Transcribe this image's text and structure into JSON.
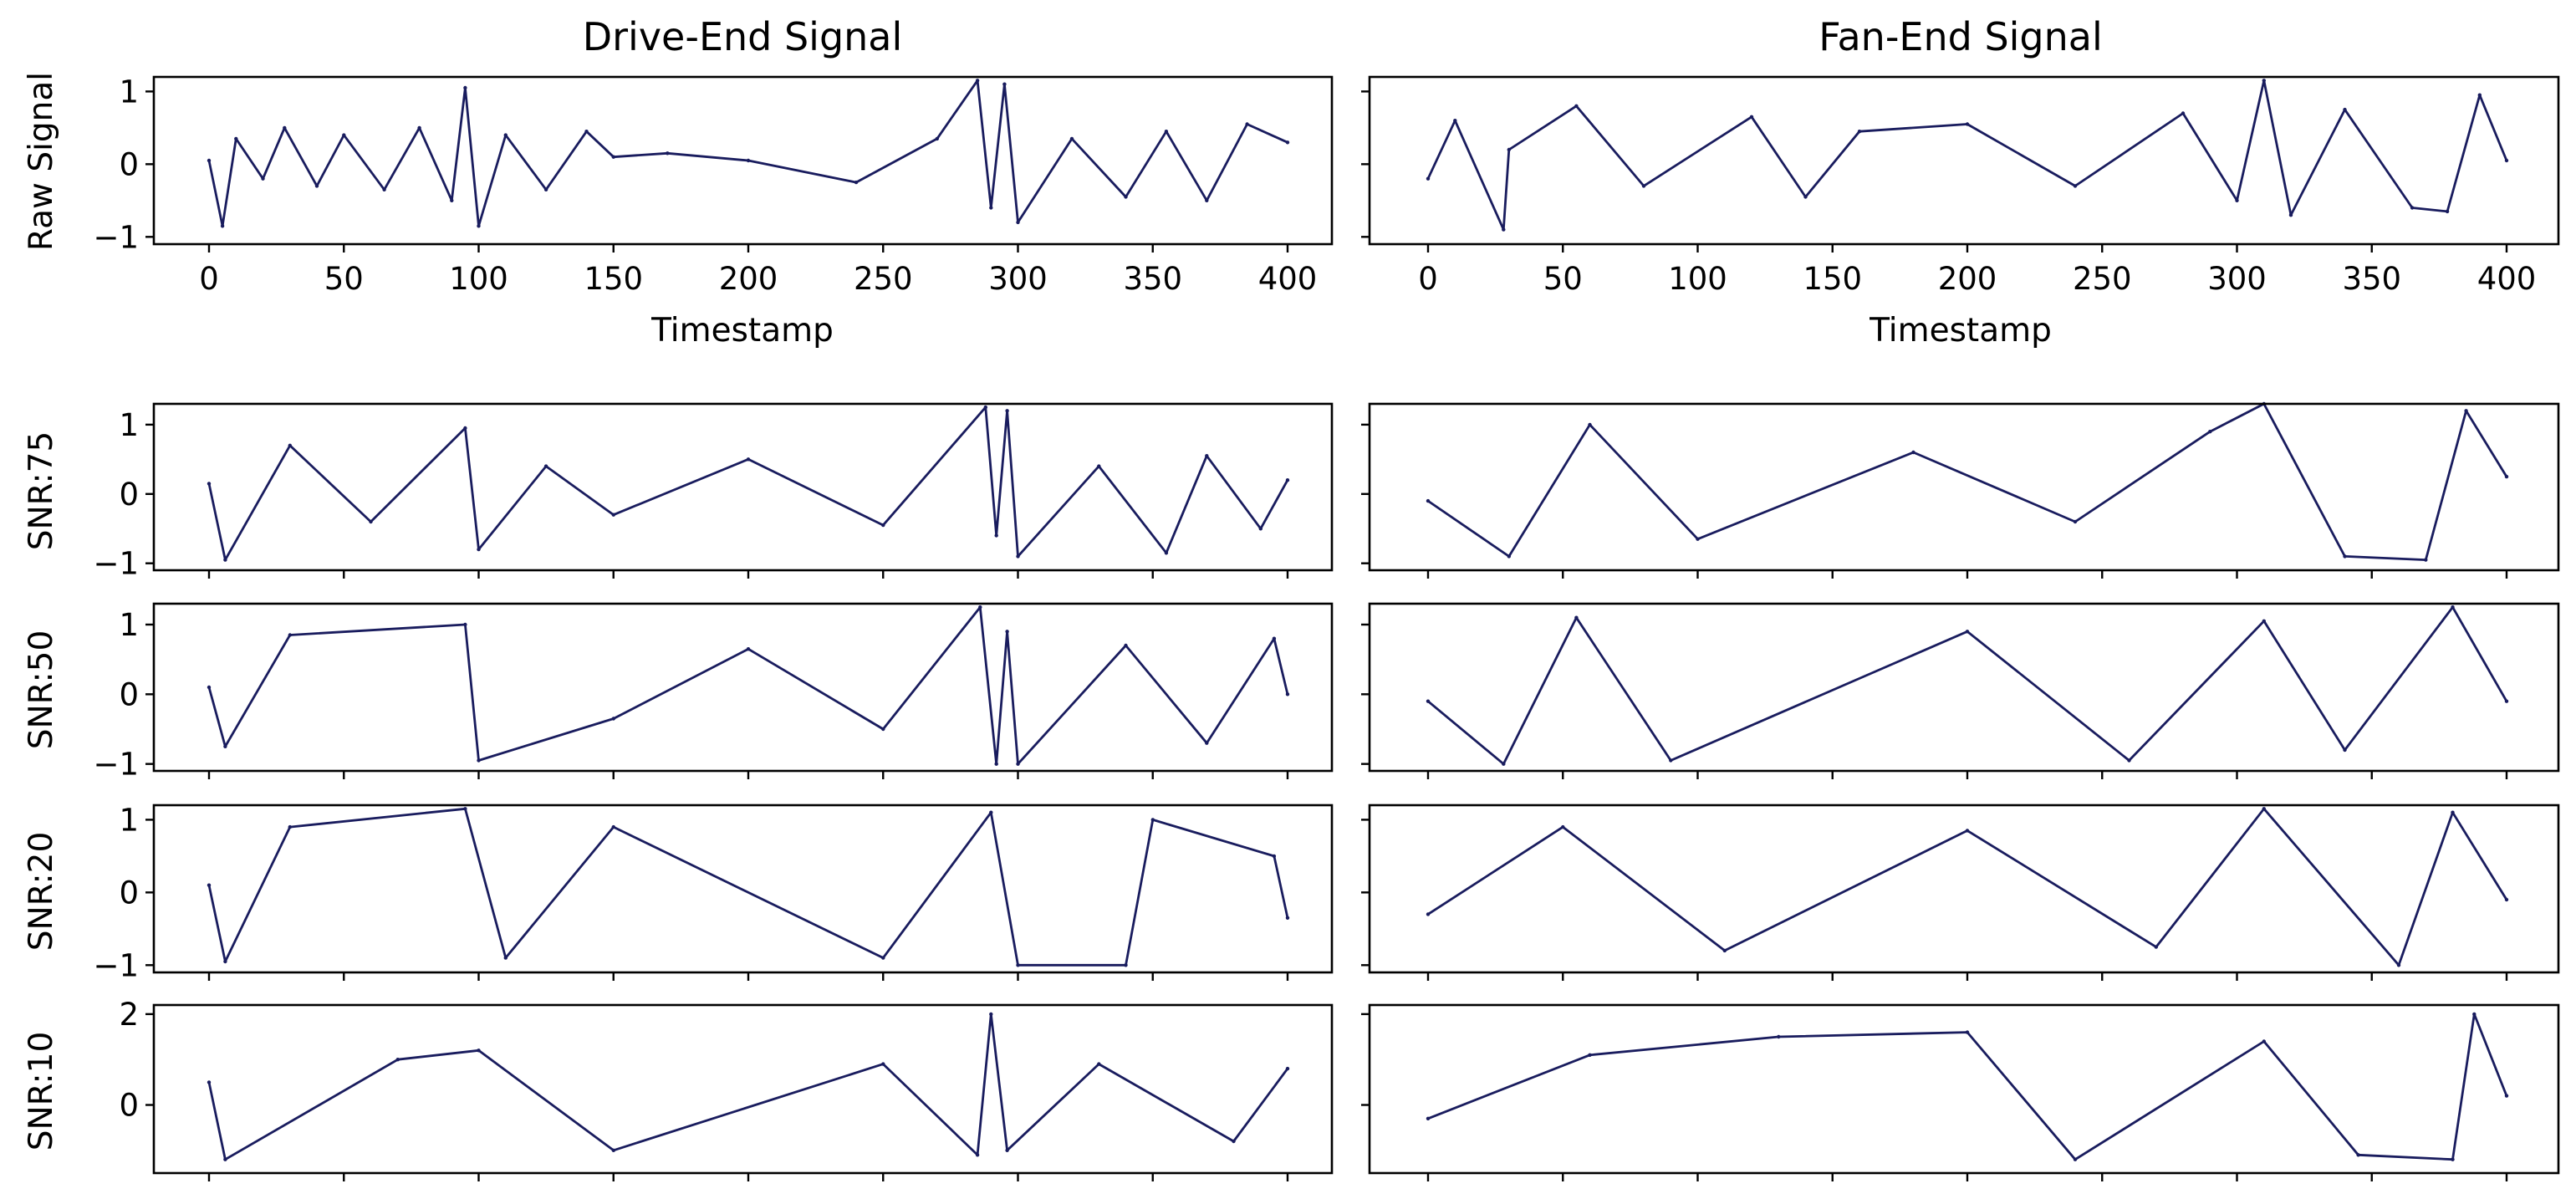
{
  "figure": {
    "column_titles": [
      "Drive-End Signal",
      "Fan-End Signal"
    ],
    "row_labels": [
      "Raw Signal",
      "SNR:75",
      "SNR:50",
      "SNR:20",
      "SNR:10"
    ],
    "x_label": "Timestamp"
  },
  "chart_data": {
    "type": "line",
    "layout": "5 rows x 2 columns of small-multiple line plots",
    "line_color": "#191c5e",
    "grid": false,
    "x_range": [
      0,
      400
    ],
    "x_ticks": [
      0,
      50,
      100,
      150,
      200,
      250,
      300,
      350,
      400
    ],
    "x_tick_labels_shown_on_row": "Raw Signal",
    "panels": [
      {
        "row": "Raw Signal",
        "column": "Drive-End Signal",
        "ylim": [
          -1.1,
          1.2
        ],
        "yticks": [
          -1,
          0,
          1
        ],
        "x": [
          0,
          5,
          10,
          20,
          28,
          40,
          50,
          65,
          78,
          90,
          95,
          100,
          110,
          125,
          140,
          150,
          170,
          200,
          240,
          270,
          285,
          290,
          295,
          300,
          320,
          340,
          355,
          370,
          385,
          400
        ],
        "y": [
          0.05,
          -0.85,
          0.35,
          -0.2,
          0.5,
          -0.3,
          0.4,
          -0.35,
          0.5,
          -0.5,
          1.05,
          -0.85,
          0.4,
          -0.35,
          0.45,
          0.1,
          0.15,
          0.05,
          -0.25,
          0.35,
          1.15,
          -0.6,
          1.1,
          -0.8,
          0.35,
          -0.45,
          0.45,
          -0.5,
          0.55,
          0.3
        ]
      },
      {
        "row": "Raw Signal",
        "column": "Fan-End Signal",
        "ylim": [
          -1.1,
          1.2
        ],
        "yticks": [
          -1,
          0,
          1
        ],
        "x": [
          0,
          10,
          28,
          30,
          55,
          80,
          120,
          140,
          160,
          200,
          240,
          280,
          300,
          310,
          320,
          340,
          365,
          378,
          390,
          400
        ],
        "y": [
          -0.2,
          0.6,
          -0.9,
          0.2,
          0.8,
          -0.3,
          0.65,
          -0.45,
          0.45,
          0.55,
          -0.3,
          0.7,
          -0.5,
          1.15,
          -0.7,
          0.75,
          -0.6,
          -0.65,
          0.95,
          0.05
        ]
      },
      {
        "row": "SNR:75",
        "column": "Drive-End Signal",
        "ylim": [
          -1.1,
          1.3
        ],
        "yticks": [
          -1,
          0,
          1
        ],
        "x": [
          0,
          6,
          30,
          60,
          95,
          100,
          125,
          150,
          200,
          250,
          288,
          292,
          296,
          300,
          330,
          355,
          370,
          390,
          400
        ],
        "y": [
          0.15,
          -0.95,
          0.7,
          -0.4,
          0.95,
          -0.8,
          0.4,
          -0.3,
          0.5,
          -0.45,
          1.25,
          -0.6,
          1.2,
          -0.9,
          0.4,
          -0.85,
          0.55,
          -0.5,
          0.2
        ]
      },
      {
        "row": "SNR:75",
        "column": "Fan-End Signal",
        "ylim": [
          -1.1,
          1.3
        ],
        "yticks": [
          -1,
          0,
          1
        ],
        "x": [
          0,
          30,
          60,
          100,
          180,
          240,
          290,
          310,
          340,
          370,
          385,
          400
        ],
        "y": [
          -0.1,
          -0.9,
          1.0,
          -0.65,
          0.6,
          -0.4,
          0.9,
          1.3,
          -0.9,
          -0.95,
          1.2,
          0.25
        ]
      },
      {
        "row": "SNR:50",
        "column": "Drive-End Signal",
        "ylim": [
          -1.1,
          1.3
        ],
        "yticks": [
          -1,
          0,
          1
        ],
        "x": [
          0,
          6,
          30,
          95,
          100,
          150,
          200,
          250,
          286,
          292,
          296,
          300,
          340,
          370,
          395,
          400
        ],
        "y": [
          0.1,
          -0.75,
          0.85,
          1.0,
          -0.95,
          -0.35,
          0.65,
          -0.5,
          1.25,
          -1.0,
          0.9,
          -1.0,
          0.7,
          -0.7,
          0.8,
          0.0
        ]
      },
      {
        "row": "SNR:50",
        "column": "Fan-End Signal",
        "ylim": [
          -1.1,
          1.3
        ],
        "yticks": [
          -1,
          0,
          1
        ],
        "x": [
          0,
          28,
          55,
          90,
          200,
          260,
          310,
          340,
          380,
          400
        ],
        "y": [
          -0.1,
          -1.0,
          1.1,
          -0.95,
          0.9,
          -0.95,
          1.05,
          -0.8,
          1.25,
          -0.1
        ]
      },
      {
        "row": "SNR:20",
        "column": "Drive-End Signal",
        "ylim": [
          -1.1,
          1.2
        ],
        "yticks": [
          -1,
          0,
          1
        ],
        "x": [
          0,
          6,
          30,
          95,
          110,
          150,
          250,
          290,
          300,
          340,
          350,
          395,
          400
        ],
        "y": [
          0.1,
          -0.95,
          0.9,
          1.15,
          -0.9,
          0.9,
          -0.9,
          1.1,
          -1.0,
          -1.0,
          1.0,
          0.5,
          -0.35
        ]
      },
      {
        "row": "SNR:20",
        "column": "Fan-End Signal",
        "ylim": [
          -1.1,
          1.2
        ],
        "yticks": [
          -1,
          0,
          1
        ],
        "x": [
          0,
          50,
          110,
          200,
          270,
          310,
          360,
          380,
          400
        ],
        "y": [
          -0.3,
          0.9,
          -0.8,
          0.85,
          -0.75,
          1.15,
          -1.0,
          1.1,
          -0.1
        ]
      },
      {
        "row": "SNR:10",
        "column": "Drive-End Signal",
        "ylim": [
          -1.5,
          2.2
        ],
        "yticks": [
          0,
          2
        ],
        "x": [
          0,
          6,
          70,
          100,
          150,
          250,
          285,
          290,
          296,
          330,
          380,
          400
        ],
        "y": [
          0.5,
          -1.2,
          1.0,
          1.2,
          -1.0,
          0.9,
          -1.1,
          2.0,
          -1.0,
          0.9,
          -0.8,
          0.8
        ]
      },
      {
        "row": "SNR:10",
        "column": "Fan-End Signal",
        "ylim": [
          -1.5,
          2.2
        ],
        "yticks": [
          0,
          2
        ],
        "x": [
          0,
          60,
          130,
          200,
          240,
          310,
          345,
          380,
          388,
          400
        ],
        "y": [
          -0.3,
          1.1,
          1.5,
          1.6,
          -1.2,
          1.4,
          -1.1,
          -1.2,
          2.0,
          0.2
        ]
      }
    ]
  }
}
